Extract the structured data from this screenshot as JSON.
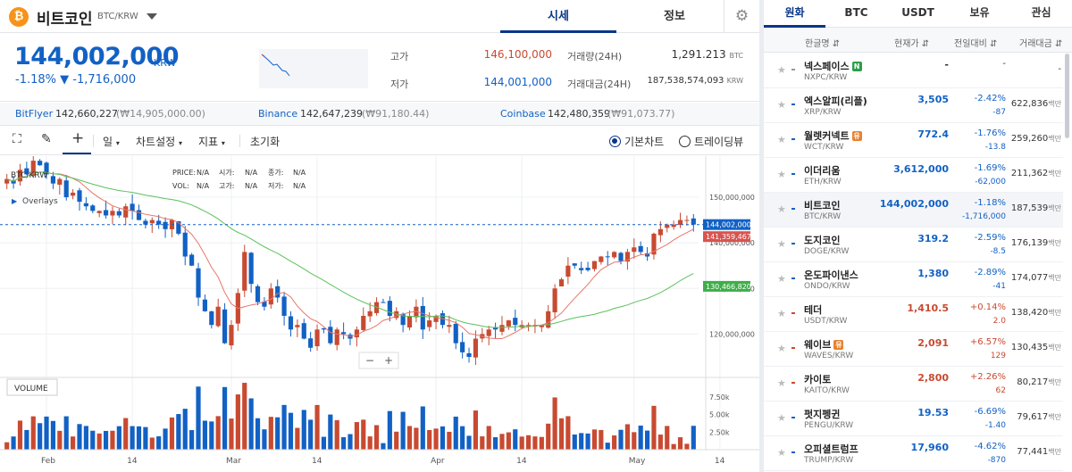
{
  "header": {
    "coin_icon": "bitcoin-icon",
    "coin_name": "비트코인",
    "pair": "BTC/KRW",
    "tabs": [
      {
        "label": "시세",
        "active": true
      },
      {
        "label": "정보",
        "active": false
      }
    ]
  },
  "price": {
    "current": "144,002,000",
    "currency": "KRW",
    "change": "-1.18% ▼ -1,716,000",
    "stats": {
      "high_label": "고가",
      "high": "146,100,000",
      "low_label": "저가",
      "low": "144,001,000",
      "vol_label": "거래량(24H)",
      "vol": "1,291.213",
      "vol_unit": "BTC",
      "amt_label": "거래대금(24H)",
      "amt": "187,538,574,093",
      "amt_unit": "KRW"
    }
  },
  "exchanges": [
    {
      "name": "BitFlyer",
      "price": "142,660,227",
      "diff": "(₩14,905,000.00)"
    },
    {
      "name": "Binance",
      "price": "142,647,239",
      "diff": "(₩91,180.44)"
    },
    {
      "name": "Coinbase",
      "price": "142,480,359",
      "diff": "(₩91,073.77)"
    }
  ],
  "toolbar": {
    "interval": "일",
    "chart_settings": "차트설정",
    "indicators": "지표",
    "reset": "초기화",
    "basic_chart": "기본차트",
    "tradingview": "트레이딩뷰"
  },
  "chart_data": {
    "type": "candlestick",
    "symbol_label": "BTC/KRW",
    "overlays_label": "Overlays",
    "info": {
      "price_k": "PRICE:",
      "price_v": "N/A",
      "open_k": "시가:",
      "open_v": "N/A",
      "close_k": "종가:",
      "close_v": "N/A",
      "hl_k": "N/A",
      "vol_k": "VOL:",
      "vol_v": "N/A",
      "high_k": "고가:",
      "high_v": "N/A",
      "low_k": "저가:",
      "low_v": "N/A",
      "end_v": "N/A"
    },
    "price_ticks": [
      {
        "label": "150,000,000",
        "value": 150000000
      },
      {
        "label": "140,000,000",
        "value": 140000000
      },
      {
        "label": "130,000,000",
        "value": 130000000
      },
      {
        "label": "120,000,000",
        "value": 120000000
      }
    ],
    "price_range": [
      110500000,
      159000000
    ],
    "last_price_label": "144,002,000",
    "last_price": 144002000,
    "ma_short_label": "141,359,467",
    "ma_short": 141359467,
    "ma_long_label": "130,466,820",
    "ma_long": 130466820,
    "volume_label": "VOLUME",
    "volume_ticks": [
      {
        "label": "7.50k",
        "value": 7500
      },
      {
        "label": "5.00k",
        "value": 5000
      },
      {
        "label": "2.50k",
        "value": 2500
      }
    ],
    "volume_max": 10000,
    "x_ticks": [
      {
        "label": "Feb",
        "index": 6
      },
      {
        "label": "14",
        "index": 19
      },
      {
        "label": "Mar",
        "index": 34
      },
      {
        "label": "14",
        "index": 47
      },
      {
        "label": "Apr",
        "index": 65
      },
      {
        "label": "14",
        "index": 78
      },
      {
        "label": "May",
        "index": 95
      },
      {
        "label": "14",
        "index": 108
      }
    ],
    "zoom_minus": "−",
    "zoom_plus": "+",
    "closes": [
      154,
      153,
      156,
      155,
      158,
      157,
      155,
      153,
      154,
      150,
      151,
      149,
      148,
      147,
      147,
      146,
      147,
      146,
      148,
      147,
      145,
      144,
      145,
      144,
      143,
      145,
      142,
      137,
      135,
      128,
      125,
      122,
      126,
      118,
      122,
      129,
      138,
      131,
      127,
      126,
      130,
      128,
      124,
      121,
      122,
      119,
      117,
      121,
      121,
      118,
      121,
      120,
      119,
      121,
      124,
      125,
      127,
      127,
      124,
      125,
      122,
      124,
      126,
      121,
      123,
      124,
      122,
      122,
      118,
      116,
      115,
      119,
      120,
      121,
      121,
      122,
      123,
      122,
      122,
      122,
      122,
      122,
      125,
      130,
      132,
      135,
      135,
      134,
      134,
      136,
      137,
      137,
      138,
      136,
      138,
      139,
      138,
      137,
      142,
      143,
      144,
      144,
      145,
      145,
      144
    ]
  },
  "market": {
    "tabs": [
      {
        "label": "원화",
        "active": true
      },
      {
        "label": "BTC"
      },
      {
        "label": "USDT"
      },
      {
        "label": "보유"
      },
      {
        "label": "관심"
      }
    ],
    "cols": {
      "name": "한글명 ⇵",
      "price": "현재가 ⇵",
      "rate": "전일대비 ⇵",
      "amt": "거래대금 ⇵"
    },
    "rows": [
      {
        "name": "넥스페이스",
        "badge": "N",
        "badge_color": "#2e9e4a",
        "pair": "NXPC/KRW",
        "price": "-",
        "rate": "-",
        "amount": "",
        "volume": "-",
        "unit": "",
        "dir": "fl",
        "selected": false
      },
      {
        "name": "엑스알피(리플)",
        "pair": "XRP/KRW",
        "price": "3,505",
        "rate": "-2.42%",
        "amount": "-87",
        "volume": "622,836",
        "unit": "백만",
        "dir": "dn",
        "selected": false
      },
      {
        "name": "월렛커넥트",
        "badge": "유",
        "badge_color": "#e8812f",
        "pair": "WCT/KRW",
        "price": "772.4",
        "rate": "-1.76%",
        "amount": "-13.8",
        "volume": "259,260",
        "unit": "백만",
        "dir": "dn",
        "selected": false
      },
      {
        "name": "이더리움",
        "pair": "ETH/KRW",
        "price": "3,612,000",
        "rate": "-1.69%",
        "amount": "-62,000",
        "volume": "211,362",
        "unit": "백만",
        "dir": "dn",
        "selected": false
      },
      {
        "name": "비트코인",
        "pair": "BTC/KRW",
        "price": "144,002,000",
        "rate": "-1.18%",
        "amount": "-1,716,000",
        "volume": "187,539",
        "unit": "백만",
        "dir": "dn",
        "selected": true
      },
      {
        "name": "도지코인",
        "pair": "DOGE/KRW",
        "price": "319.2",
        "rate": "-2.59%",
        "amount": "-8.5",
        "volume": "176,139",
        "unit": "백만",
        "dir": "dn",
        "selected": false
      },
      {
        "name": "온도파이낸스",
        "pair": "ONDO/KRW",
        "price": "1,380",
        "rate": "-2.89%",
        "amount": "-41",
        "volume": "174,077",
        "unit": "백만",
        "dir": "dn",
        "selected": false
      },
      {
        "name": "테더",
        "pair": "USDT/KRW",
        "price": "1,410.5",
        "rate": "+0.14%",
        "amount": "2.0",
        "volume": "138,420",
        "unit": "백만",
        "dir": "up",
        "selected": false
      },
      {
        "name": "웨이브",
        "badge": "유",
        "badge_color": "#e8812f",
        "pair": "WAVES/KRW",
        "price": "2,091",
        "rate": "+6.57%",
        "amount": "129",
        "volume": "130,435",
        "unit": "백만",
        "dir": "up",
        "selected": false
      },
      {
        "name": "카이토",
        "pair": "KAITO/KRW",
        "price": "2,800",
        "rate": "+2.26%",
        "amount": "62",
        "volume": "80,217",
        "unit": "백만",
        "dir": "up",
        "selected": false
      },
      {
        "name": "펏지펭귄",
        "pair": "PENGU/KRW",
        "price": "19.53",
        "rate": "-6.69%",
        "amount": "-1.40",
        "volume": "79,617",
        "unit": "백만",
        "dir": "dn",
        "selected": false
      },
      {
        "name": "오피셜트럼프",
        "pair": "TRUMP/KRW",
        "price": "17,960",
        "rate": "-4.62%",
        "amount": "-870",
        "volume": "77,441",
        "unit": "백만",
        "dir": "dn",
        "selected": false
      }
    ]
  },
  "colors": {
    "up": "#c84a31",
    "down": "#1261c4",
    "accent": "#093687",
    "ma_short": "#e8776a",
    "ma_long": "#5cc15c",
    "last_price": "#1261c4"
  }
}
